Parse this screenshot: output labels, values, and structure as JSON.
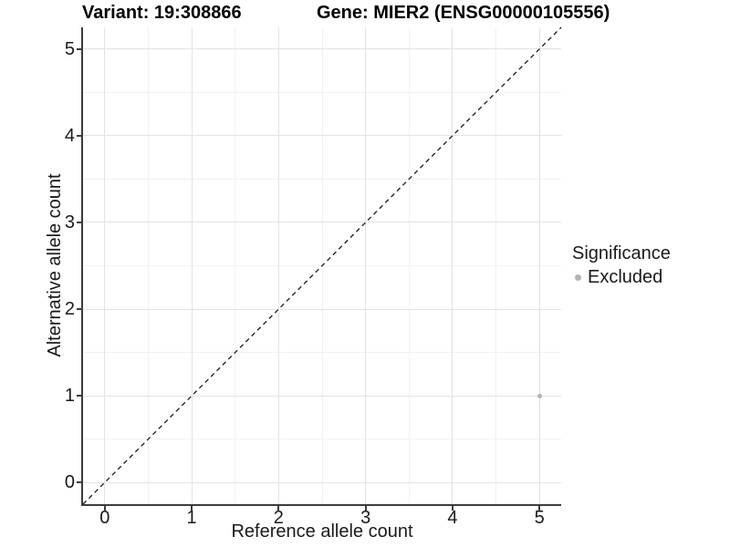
{
  "titles": {
    "variant": "Variant: 19:308866",
    "gene": "Gene: MIER2 (ENSG00000105556)"
  },
  "axes": {
    "x": {
      "label": "Reference allele count",
      "tick_labels": [
        "0",
        "1",
        "2",
        "3",
        "4",
        "5"
      ]
    },
    "y": {
      "label": "Alternative allele count",
      "tick_labels": [
        "0",
        "1",
        "2",
        "3",
        "4",
        "5"
      ]
    }
  },
  "legend": {
    "title": "Significance",
    "items": [
      {
        "label": "Excluded",
        "color": "#b3b3b3"
      }
    ]
  },
  "colors": {
    "background": "#ffffff",
    "axis_line": "#3c3c3c",
    "grid_major": "#e3e3e3",
    "grid_minor": "#f1f1f1",
    "text": "#1a1a1a",
    "reference_line": "#1a1a1a",
    "excluded_point": "#b3b3b3"
  },
  "chart_data": {
    "type": "scatter",
    "title": "Variant: 19:308866    Gene: MIER2 (ENSG00000105556)",
    "xlabel": "Reference allele count",
    "ylabel": "Alternative allele count",
    "xlim": [
      -0.25,
      5.25
    ],
    "ylim": [
      -0.25,
      5.25
    ],
    "x_ticks": [
      0,
      1,
      2,
      3,
      4,
      5
    ],
    "y_ticks": [
      0,
      1,
      2,
      3,
      4,
      5
    ],
    "minor_grid_step": 0.5,
    "grid": "major and minor, light grey on white",
    "legend_position": "right",
    "series": [
      {
        "name": "Excluded",
        "color": "#b3b3b3",
        "point_radius": 2.5,
        "points": [
          [
            5,
            1
          ]
        ]
      }
    ],
    "reference_line": {
      "type": "identity",
      "style": "dashed",
      "color": "#1a1a1a",
      "from": [
        -0.25,
        -0.25
      ],
      "to": [
        5.25,
        5.25
      ]
    }
  }
}
